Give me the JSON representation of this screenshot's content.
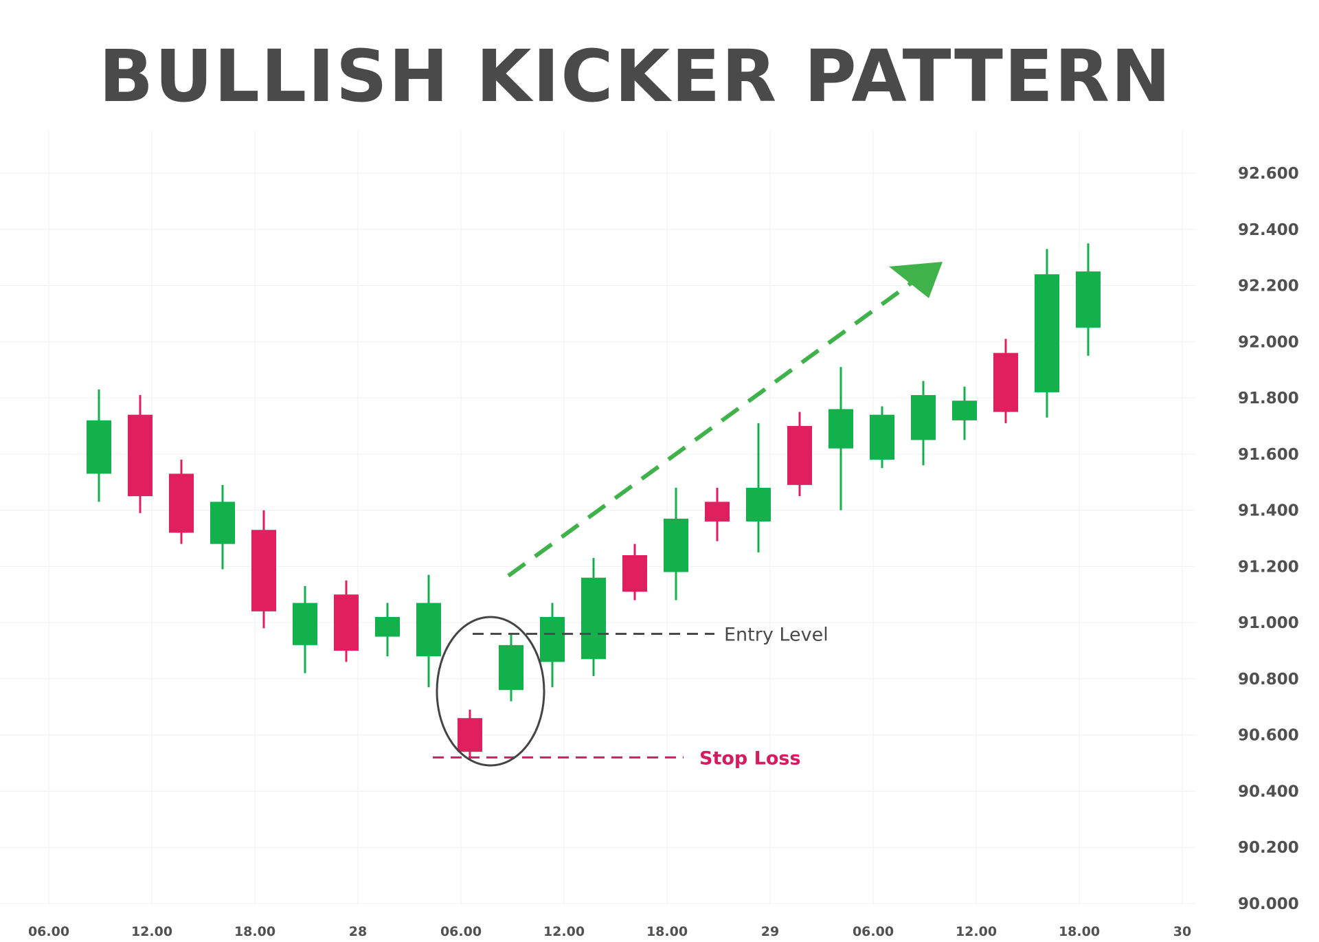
{
  "chart_data": {
    "type": "candlestick",
    "title": "BULLISH KICKER PATTERN",
    "x_tick_labels": [
      "06.00",
      "12.00",
      "18.00",
      "28",
      "06.00",
      "12.00",
      "18.00",
      "29",
      "06.00",
      "12.00",
      "18.00",
      "30"
    ],
    "y_tick_labels": [
      "92.600",
      "92.400",
      "92.200",
      "92.000",
      "91.800",
      "91.600",
      "91.400",
      "91.200",
      "91.000",
      "90.800",
      "90.600",
      "90.400",
      "90.200",
      "90.000"
    ],
    "ylim": [
      90.0,
      92.6
    ],
    "y_axis_position": "right",
    "grid": true,
    "colors": {
      "bullish": "#12b14c",
      "bearish": "#e0205e",
      "arrow": "#3fb34a",
      "title": "#4a4a4a",
      "axis_text": "#505050",
      "grid": "#f0f0f0"
    },
    "candles": [
      {
        "open": 91.53,
        "high": 91.83,
        "low": 91.43,
        "close": 91.72
      },
      {
        "open": 91.74,
        "high": 91.81,
        "low": 91.39,
        "close": 91.45
      },
      {
        "open": 91.53,
        "high": 91.58,
        "low": 91.28,
        "close": 91.32
      },
      {
        "open": 91.28,
        "high": 91.49,
        "low": 91.19,
        "close": 91.43
      },
      {
        "open": 91.33,
        "high": 91.4,
        "low": 90.98,
        "close": 91.04
      },
      {
        "open": 90.92,
        "high": 91.13,
        "low": 90.82,
        "close": 91.07
      },
      {
        "open": 91.1,
        "high": 91.15,
        "low": 90.86,
        "close": 90.9
      },
      {
        "open": 90.95,
        "high": 91.07,
        "low": 90.88,
        "close": 91.02
      },
      {
        "open": 90.88,
        "high": 91.17,
        "low": 90.77,
        "close": 91.07
      },
      {
        "open": 90.66,
        "high": 90.69,
        "low": 90.51,
        "close": 90.54
      },
      {
        "open": 90.76,
        "high": 90.96,
        "low": 90.72,
        "close": 90.92
      },
      {
        "open": 90.86,
        "high": 91.07,
        "low": 90.77,
        "close": 91.02
      },
      {
        "open": 90.87,
        "high": 91.23,
        "low": 90.81,
        "close": 91.16
      },
      {
        "open": 91.24,
        "high": 91.28,
        "low": 91.08,
        "close": 91.11
      },
      {
        "open": 91.18,
        "high": 91.48,
        "low": 91.08,
        "close": 91.37
      },
      {
        "open": 91.43,
        "high": 91.48,
        "low": 91.29,
        "close": 91.36
      },
      {
        "open": 91.36,
        "high": 91.71,
        "low": 91.25,
        "close": 91.48
      },
      {
        "open": 91.7,
        "high": 91.75,
        "low": 91.45,
        "close": 91.49
      },
      {
        "open": 91.62,
        "high": 91.91,
        "low": 91.4,
        "close": 91.76
      },
      {
        "open": 91.58,
        "high": 91.77,
        "low": 91.55,
        "close": 91.74
      },
      {
        "open": 91.65,
        "high": 91.86,
        "low": 91.56,
        "close": 91.81
      },
      {
        "open": 91.72,
        "high": 91.84,
        "low": 91.65,
        "close": 91.79
      },
      {
        "open": 91.96,
        "high": 92.01,
        "low": 91.71,
        "close": 91.75
      },
      {
        "open": 91.82,
        "high": 92.33,
        "low": 91.73,
        "close": 92.24
      },
      {
        "open": 92.05,
        "high": 92.35,
        "low": 91.95,
        "close": 92.25
      }
    ],
    "annotations": {
      "entry_level": {
        "label": "Entry Level",
        "y": 90.96,
        "color": "#4a4a4a"
      },
      "stop_loss": {
        "label": "Stop Loss",
        "y": 90.52,
        "color": "#d81b60"
      },
      "highlight": "kicker candles 10-11",
      "trend_arrow": "up-right"
    }
  }
}
